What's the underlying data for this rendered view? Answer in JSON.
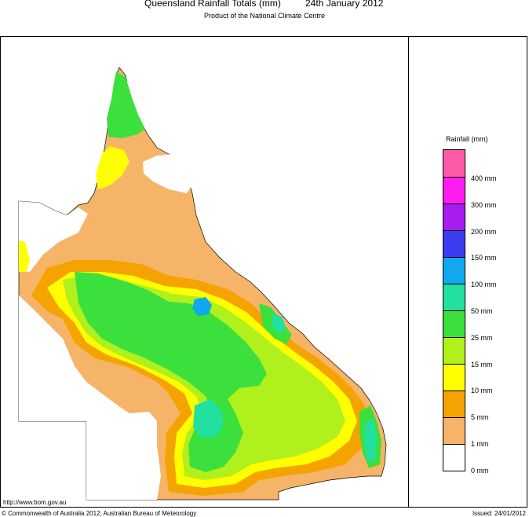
{
  "header": {
    "title": "Queensland Rainfall Totals (mm)",
    "date": "24th January 2012",
    "subtitle": "Product of the National Climate Centre"
  },
  "legend": {
    "title": "Rainfall (mm)",
    "scale": [
      {
        "label": "",
        "color": "#ff5aa8"
      },
      {
        "label": "400 mm",
        "color": "#ff1cf0"
      },
      {
        "label": "300 mm",
        "color": "#a81cf0"
      },
      {
        "label": "200 mm",
        "color": "#3b3bf0"
      },
      {
        "label": "150 mm",
        "color": "#11a8f0"
      },
      {
        "label": "100 mm",
        "color": "#22e0a0"
      },
      {
        "label": "50 mm",
        "color": "#3ce03c"
      },
      {
        "label": "25 mm",
        "color": "#b0f01c"
      },
      {
        "label": "15 mm",
        "color": "#ffff00"
      },
      {
        "label": "10 mm",
        "color": "#f5a300"
      },
      {
        "label": "5 mm",
        "color": "#f5b468"
      },
      {
        "label": "1 mm",
        "color": "#ffffff"
      },
      {
        "label": "0 mm",
        "color": ""
      }
    ]
  },
  "footer": {
    "url": "http://www.bom.gov.au",
    "copyright": "© Commonwealth of Australia 2012, Australian Bureau of Meteorology",
    "issued": "Issued: 24/01/2012"
  }
}
